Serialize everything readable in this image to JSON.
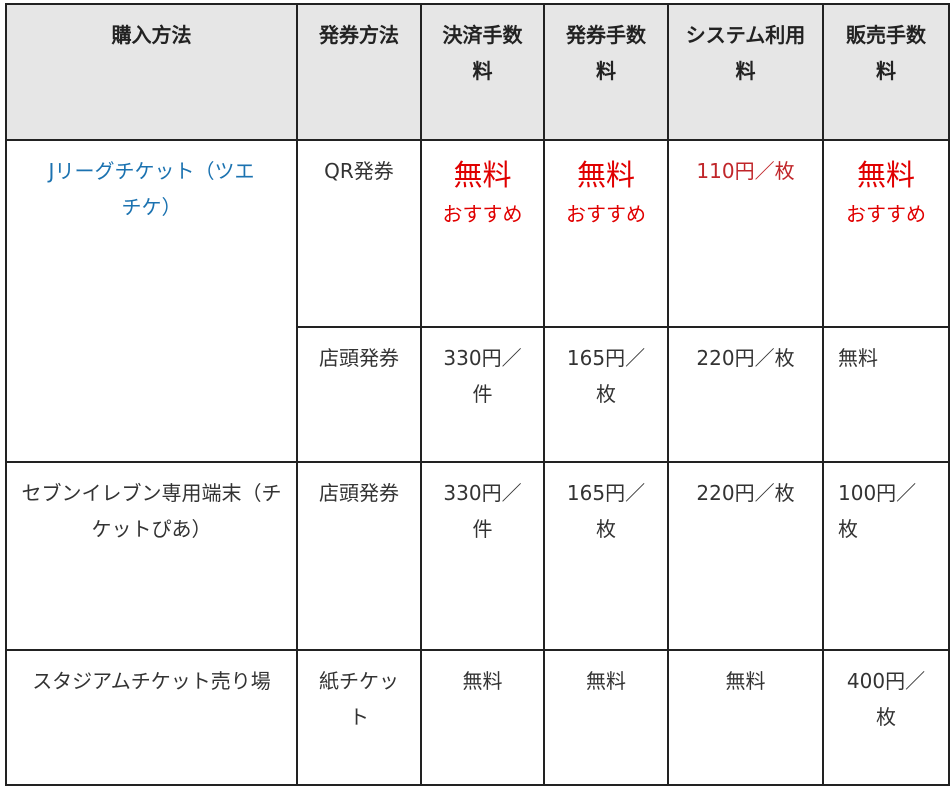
{
  "headers": [
    "購入方法",
    "発券方法",
    "決済手数料",
    "発券手数料",
    "システム利用料",
    "販売手数料"
  ],
  "rows": [
    {
      "method": "Jリーグチケット（ツエチケ）",
      "issue": "QR発券",
      "payment_fee": "無料",
      "payment_note": "おすすめ",
      "issue_fee": "無料",
      "issue_note": "おすすめ",
      "system_fee": "110円／枚",
      "sales_fee": "無料",
      "sales_note": "おすすめ"
    },
    {
      "issue": "店頭発券",
      "payment_fee": "330円／件",
      "issue_fee": "165円／枚",
      "system_fee": "220円／枚",
      "sales_fee": "無料"
    },
    {
      "method": "セブンイレブン専用端末（チケットぴあ）",
      "issue": "店頭発券",
      "payment_fee": "330円／件",
      "issue_fee": "165円／枚",
      "system_fee": "220円／枚",
      "sales_fee": "100円／枚"
    },
    {
      "method": "スタジアムチケット売り場",
      "issue": "紙チケット",
      "payment_fee": "無料",
      "issue_fee": "無料",
      "system_fee": "無料",
      "sales_fee": "400円／枚"
    }
  ],
  "colors": {
    "header_bg": "#e6e6e6",
    "link": "#1b72b0",
    "highlight": "#e00000"
  }
}
